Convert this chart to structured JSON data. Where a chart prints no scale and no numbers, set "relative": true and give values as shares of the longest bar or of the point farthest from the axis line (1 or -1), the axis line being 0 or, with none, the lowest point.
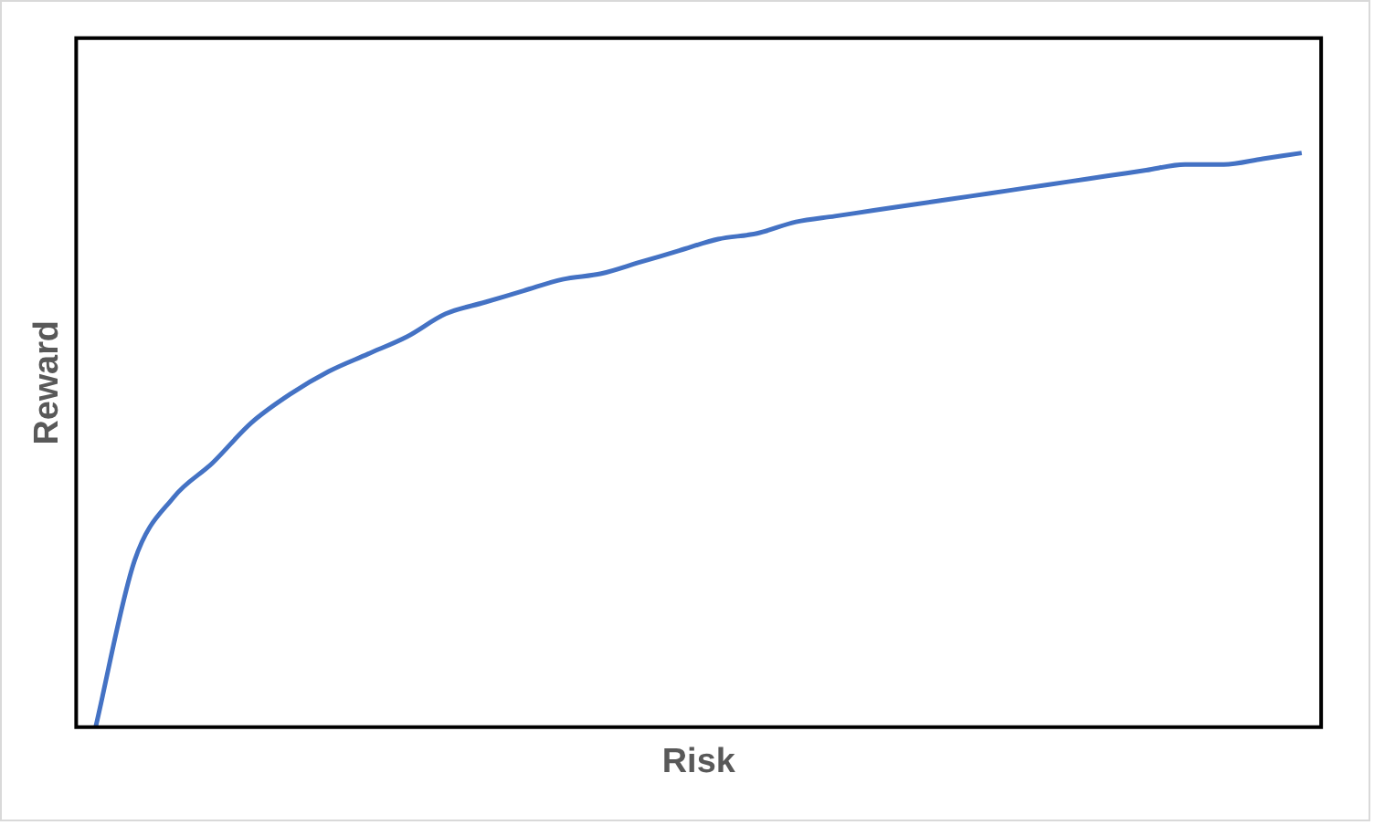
{
  "chart_data": {
    "type": "line",
    "relative": true,
    "xlabel": "Risk",
    "ylabel": "Reward",
    "grid": false,
    "legend": false,
    "marker": "none",
    "line_style": "solid",
    "categories": [
      null,
      null,
      null,
      null,
      null,
      null,
      null,
      null,
      null,
      null,
      null,
      null,
      null,
      null,
      null,
      null,
      null,
      null,
      null,
      null,
      null,
      null,
      null,
      null,
      null,
      null,
      null,
      null,
      null,
      null,
      null,
      null
    ],
    "series": [
      {
        "color": "#4472c4",
        "values": [
          0,
          0.29,
          0.4,
          0.46,
          0.53,
          0.58,
          0.62,
          0.65,
          0.68,
          0.72,
          0.74,
          0.76,
          0.78,
          0.79,
          0.81,
          0.83,
          0.85,
          0.86,
          0.88,
          0.89,
          0.9,
          0.91,
          0.92,
          0.93,
          0.94,
          0.95,
          0.96,
          0.97,
          0.98,
          0.98,
          0.99,
          1
        ]
      }
    ]
  }
}
